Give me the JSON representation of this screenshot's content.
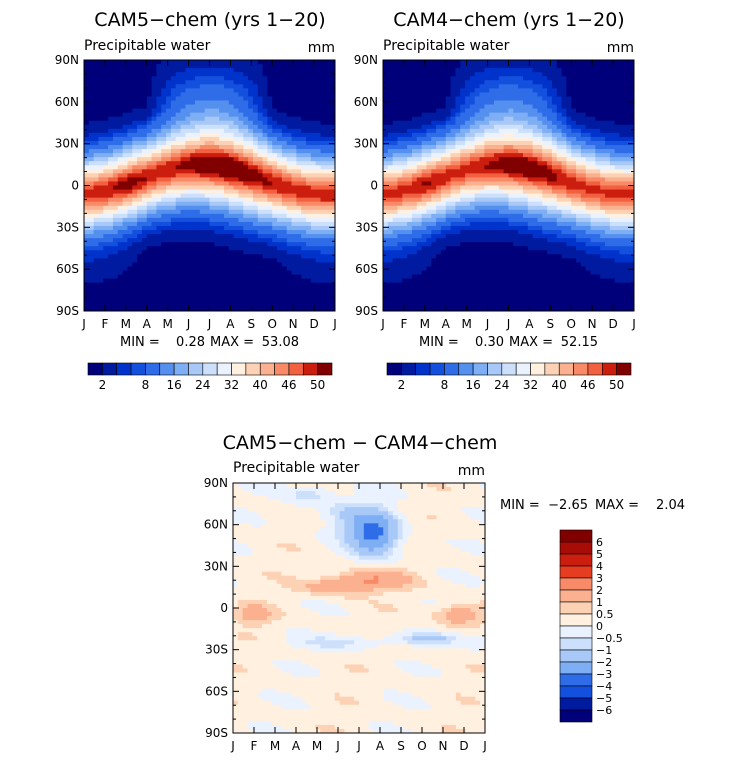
{
  "panels": [
    {
      "id": "cam5",
      "title": "CAM5−chem (yrs 1−20)",
      "subtitle": "Precipitable water",
      "units": "mm",
      "min_label": "MIN =",
      "min_value": "0.28",
      "max_label": "MAX =",
      "max_value": "53.08"
    },
    {
      "id": "cam4",
      "title": "CAM4−chem (yrs 1−20)",
      "subtitle": "Precipitable water",
      "units": "mm",
      "min_label": "MIN =",
      "min_value": "0.30",
      "max_label": "MAX =",
      "max_value": "52.15"
    },
    {
      "id": "diff",
      "title": "CAM5−chem − CAM4−chem",
      "subtitle": "Precipitable water",
      "units": "mm",
      "min_label": "MIN =",
      "min_value": "−2.65",
      "max_label": "MAX =",
      "max_value": "2.04"
    }
  ],
  "chart_data": [
    {
      "type": "heatmap",
      "title": "CAM5−chem (yrs 1−20)",
      "subtitle": "Precipitable water",
      "units": "mm",
      "x_tick_labels": [
        "J",
        "F",
        "M",
        "A",
        "M",
        "J",
        "J",
        "A",
        "S",
        "O",
        "N",
        "D",
        "J"
      ],
      "y_tick_labels": [
        "90N",
        "60N",
        "30N",
        "0",
        "30S",
        "60S",
        "90S"
      ],
      "y_range": [
        -90,
        90
      ],
      "min": 0.28,
      "max": 53.08,
      "colorbar": {
        "orientation": "horizontal",
        "tick_labels": [
          "2",
          "8",
          "16",
          "24",
          "32",
          "40",
          "46",
          "50"
        ],
        "levels": [
          2,
          4,
          6,
          8,
          12,
          16,
          20,
          24,
          28,
          32,
          36,
          40,
          43,
          46,
          48,
          50
        ]
      }
    },
    {
      "type": "heatmap",
      "title": "CAM4−chem (yrs 1−20)",
      "subtitle": "Precipitable water",
      "units": "mm",
      "x_tick_labels": [
        "J",
        "F",
        "M",
        "A",
        "M",
        "J",
        "J",
        "A",
        "S",
        "O",
        "N",
        "D",
        "J"
      ],
      "y_tick_labels": [
        "90N",
        "60N",
        "30N",
        "0",
        "30S",
        "60S",
        "90S"
      ],
      "y_range": [
        -90,
        90
      ],
      "min": 0.3,
      "max": 52.15,
      "colorbar": {
        "orientation": "horizontal",
        "tick_labels": [
          "2",
          "8",
          "16",
          "24",
          "32",
          "40",
          "46",
          "50"
        ],
        "levels": [
          2,
          4,
          6,
          8,
          12,
          16,
          20,
          24,
          28,
          32,
          36,
          40,
          43,
          46,
          48,
          50
        ]
      }
    },
    {
      "type": "heatmap",
      "title": "CAM5−chem − CAM4−chem",
      "subtitle": "Precipitable water",
      "units": "mm",
      "x_tick_labels": [
        "J",
        "F",
        "M",
        "A",
        "M",
        "J",
        "J",
        "A",
        "S",
        "O",
        "N",
        "D",
        "J"
      ],
      "y_tick_labels": [
        "90N",
        "60N",
        "30N",
        "0",
        "30S",
        "60S",
        "90S"
      ],
      "y_range": [
        -90,
        90
      ],
      "min": -2.65,
      "max": 2.04,
      "colorbar": {
        "orientation": "vertical",
        "tick_labels": [
          "6",
          "5",
          "4",
          "3",
          "2",
          "1",
          "0.5",
          "0",
          "−0.5",
          "−1",
          "−2",
          "−3",
          "−4",
          "−5",
          "−6"
        ],
        "levels": [
          6,
          5,
          4,
          3,
          2,
          1,
          0.5,
          0,
          -0.5,
          -1,
          -2,
          -3,
          -4,
          -5,
          -6
        ]
      }
    }
  ],
  "palette": {
    "blue_to_red": [
      "#00007a",
      "#001aa0",
      "#0033cc",
      "#1450de",
      "#2e6ce8",
      "#5590ef",
      "#7eaef3",
      "#a8c8f7",
      "#cde0fb",
      "#e9f2fe",
      "#fff0e0",
      "#fdd2b4",
      "#fbb090",
      "#f88a68",
      "#f26040",
      "#e63c20",
      "#cc1e0e",
      "#a80c06",
      "#800000"
    ]
  }
}
